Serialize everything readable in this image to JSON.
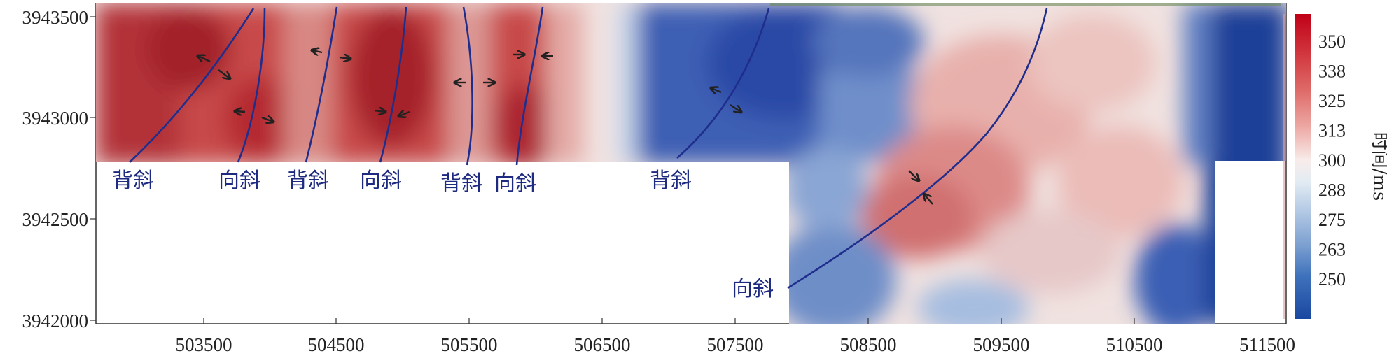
{
  "map": {
    "x_axis": {
      "ticks": [
        "503500",
        "504500",
        "505500",
        "506500",
        "507500",
        "508500",
        "509500",
        "510500",
        "511500"
      ]
    },
    "y_axis": {
      "ticks": [
        "3943500",
        "3943000",
        "3942500",
        "3942000"
      ]
    },
    "colorbar": {
      "title": "时间/ms",
      "ticks": [
        "350",
        "338",
        "325",
        "313",
        "300",
        "288",
        "275",
        "263",
        "250"
      ],
      "colors": [
        "#b81020",
        "#c7242c",
        "#d5504e",
        "#e68a86",
        "#f3c7c2",
        "#f7f1ee",
        "#dbe7f0",
        "#a5bdde",
        "#6590c8",
        "#2f66b4",
        "#1d4aa0"
      ]
    },
    "fold_labels": {
      "anticline_1": "背斜",
      "syncline_1": "向斜",
      "anticline_2": "背斜",
      "syncline_2": "向斜",
      "anticline_3": "背斜",
      "syncline_3": "向斜",
      "anticline_4": "背斜",
      "syncline_4": "向斜"
    },
    "fold_line_color": "#1f2e8c"
  }
}
